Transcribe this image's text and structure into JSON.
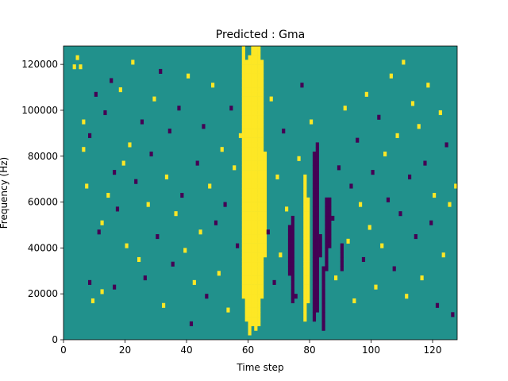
{
  "chart_data": {
    "type": "heatmap",
    "title": "Predicted : Gma",
    "xlabel": "Time step",
    "ylabel": "Frequency (Hz)",
    "xlim": [
      0,
      128
    ],
    "ylim": [
      0,
      128000
    ],
    "xticks": [
      0,
      20,
      40,
      60,
      80,
      100,
      120
    ],
    "yticks": [
      0,
      20000,
      40000,
      60000,
      80000,
      100000,
      120000
    ],
    "xtick_labels": [
      "0",
      "20",
      "40",
      "60",
      "80",
      "100",
      "120"
    ],
    "ytick_labels": [
      "0",
      "20000",
      "40000",
      "60000",
      "80000",
      "100000",
      "120000"
    ],
    "grid": false,
    "legend": "none",
    "colormap": "viridis",
    "values_legend": {
      "0": "background (teal)",
      "1": "high (yellow)",
      "-1": "low (purple)"
    },
    "colors": {
      "background": "#21918c",
      "high": "#fde725",
      "low": "#440154"
    },
    "time_steps": 128,
    "freq_bins": 64,
    "bin_height_hz": 2000,
    "dense_columns": {
      "high": [
        [
          58,
          9,
          63
        ],
        [
          59,
          4,
          60
        ],
        [
          60,
          1,
          61
        ],
        [
          61,
          3,
          63
        ],
        [
          62,
          2,
          63
        ],
        [
          63,
          3,
          63
        ],
        [
          64,
          9,
          60
        ],
        [
          65,
          18,
          40
        ],
        [
          78,
          4,
          35
        ],
        [
          79,
          8,
          30
        ]
      ],
      "low": [
        [
          73,
          14,
          24
        ],
        [
          74,
          8,
          26
        ],
        [
          81,
          4,
          40
        ],
        [
          82,
          6,
          42
        ],
        [
          83,
          18,
          22
        ],
        [
          84,
          2,
          15
        ],
        [
          85,
          15,
          30
        ],
        [
          86,
          20,
          30
        ],
        [
          90,
          15,
          20
        ]
      ]
    },
    "sparse_cells": [
      [
        3,
        59,
        1
      ],
      [
        4,
        61,
        1
      ],
      [
        5,
        59,
        1
      ],
      [
        6,
        41,
        1
      ],
      [
        6,
        47,
        1
      ],
      [
        7,
        33,
        1
      ],
      [
        8,
        12,
        -1
      ],
      [
        8,
        44,
        -1
      ],
      [
        9,
        8,
        1
      ],
      [
        10,
        53,
        -1
      ],
      [
        11,
        23,
        -1
      ],
      [
        12,
        10,
        1
      ],
      [
        12,
        25,
        1
      ],
      [
        13,
        49,
        -1
      ],
      [
        14,
        31,
        1
      ],
      [
        15,
        56,
        -1
      ],
      [
        16,
        36,
        -1
      ],
      [
        16,
        11,
        -1
      ],
      [
        17,
        28,
        -1
      ],
      [
        18,
        54,
        1
      ],
      [
        19,
        38,
        1
      ],
      [
        20,
        20,
        1
      ],
      [
        21,
        42,
        1
      ],
      [
        22,
        60,
        1
      ],
      [
        23,
        34,
        -1
      ],
      [
        24,
        17,
        1
      ],
      [
        25,
        47,
        -1
      ],
      [
        26,
        13,
        -1
      ],
      [
        27,
        29,
        1
      ],
      [
        28,
        40,
        -1
      ],
      [
        29,
        52,
        1
      ],
      [
        30,
        22,
        -1
      ],
      [
        31,
        58,
        -1
      ],
      [
        32,
        7,
        1
      ],
      [
        33,
        35,
        1
      ],
      [
        34,
        45,
        -1
      ],
      [
        35,
        16,
        -1
      ],
      [
        36,
        27,
        1
      ],
      [
        37,
        50,
        -1
      ],
      [
        38,
        31,
        -1
      ],
      [
        39,
        19,
        1
      ],
      [
        40,
        57,
        1
      ],
      [
        41,
        3,
        -1
      ],
      [
        42,
        12,
        1
      ],
      [
        43,
        38,
        -1
      ],
      [
        44,
        23,
        1
      ],
      [
        45,
        46,
        -1
      ],
      [
        46,
        9,
        -1
      ],
      [
        47,
        33,
        1
      ],
      [
        48,
        55,
        1
      ],
      [
        49,
        25,
        -1
      ],
      [
        50,
        14,
        1
      ],
      [
        51,
        41,
        1
      ],
      [
        52,
        29,
        -1
      ],
      [
        53,
        6,
        1
      ],
      [
        54,
        50,
        -1
      ],
      [
        55,
        37,
        1
      ],
      [
        56,
        20,
        -1
      ],
      [
        57,
        44,
        1
      ],
      [
        66,
        23,
        -1
      ],
      [
        67,
        52,
        1
      ],
      [
        68,
        12,
        -1
      ],
      [
        69,
        35,
        1
      ],
      [
        70,
        18,
        1
      ],
      [
        71,
        45,
        -1
      ],
      [
        72,
        28,
        1
      ],
      [
        75,
        9,
        -1
      ],
      [
        76,
        39,
        1
      ],
      [
        77,
        55,
        -1
      ],
      [
        80,
        47,
        1
      ],
      [
        87,
        26,
        -1
      ],
      [
        88,
        13,
        1
      ],
      [
        89,
        37,
        -1
      ],
      [
        91,
        50,
        1
      ],
      [
        92,
        21,
        1
      ],
      [
        93,
        33,
        -1
      ],
      [
        94,
        8,
        1
      ],
      [
        95,
        43,
        -1
      ],
      [
        96,
        29,
        1
      ],
      [
        97,
        17,
        -1
      ],
      [
        98,
        53,
        1
      ],
      [
        99,
        24,
        1
      ],
      [
        100,
        36,
        -1
      ],
      [
        101,
        11,
        1
      ],
      [
        102,
        48,
        -1
      ],
      [
        103,
        20,
        1
      ],
      [
        104,
        40,
        1
      ],
      [
        105,
        30,
        -1
      ],
      [
        106,
        57,
        1
      ],
      [
        107,
        15,
        -1
      ],
      [
        108,
        44,
        1
      ],
      [
        109,
        27,
        -1
      ],
      [
        110,
        60,
        1
      ],
      [
        111,
        9,
        1
      ],
      [
        112,
        35,
        -1
      ],
      [
        113,
        51,
        1
      ],
      [
        114,
        22,
        -1
      ],
      [
        115,
        46,
        1
      ],
      [
        116,
        13,
        1
      ],
      [
        117,
        38,
        -1
      ],
      [
        118,
        55,
        1
      ],
      [
        119,
        25,
        -1
      ],
      [
        120,
        31,
        1
      ],
      [
        121,
        7,
        -1
      ],
      [
        122,
        49,
        1
      ],
      [
        123,
        18,
        1
      ],
      [
        124,
        42,
        -1
      ],
      [
        125,
        29,
        1
      ],
      [
        126,
        5,
        -1
      ],
      [
        127,
        33,
        1
      ]
    ]
  }
}
